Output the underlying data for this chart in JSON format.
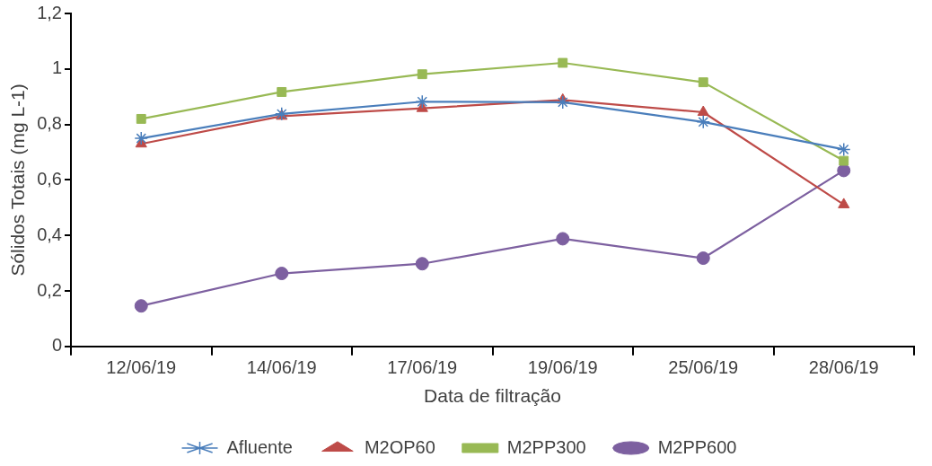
{
  "chart_data": {
    "type": "line",
    "xlabel": "Data de filtração",
    "ylabel": "Sólidos Totais (mg L-1)",
    "categories": [
      "12/06/19",
      "14/06/19",
      "17/06/19",
      "19/06/19",
      "25/06/19",
      "28/06/19"
    ],
    "series": [
      {
        "name": "Afluente",
        "color": "#4a7ebb",
        "marker": "cross",
        "values": [
          0.75,
          0.838,
          0.882,
          0.88,
          0.809,
          0.71
        ]
      },
      {
        "name": "M2OP60",
        "color": "#be4b48",
        "marker": "triangle",
        "values": [
          0.73,
          0.83,
          0.858,
          0.888,
          0.844,
          0.511
        ]
      },
      {
        "name": "M2PP300",
        "color": "#98b954",
        "marker": "square",
        "values": [
          0.82,
          0.917,
          0.981,
          1.022,
          0.952,
          0.669
        ]
      },
      {
        "name": "M2PP600",
        "color": "#7d60a0",
        "marker": "circle",
        "values": [
          0.146,
          0.263,
          0.298,
          0.388,
          0.318,
          0.634
        ]
      }
    ],
    "ylim": [
      0,
      1.2
    ],
    "yticks": [
      0,
      {
        "value": 0.2,
        "label": "0,2"
      },
      {
        "value": 0.4,
        "label": "0,4"
      },
      {
        "value": 0.6,
        "label": "0,6"
      },
      {
        "value": 0.8,
        "label": "0,8"
      },
      1,
      {
        "value": 1.2,
        "label": "1,2"
      }
    ],
    "grid": false,
    "legend": "bottom",
    "line_style": "solid"
  }
}
